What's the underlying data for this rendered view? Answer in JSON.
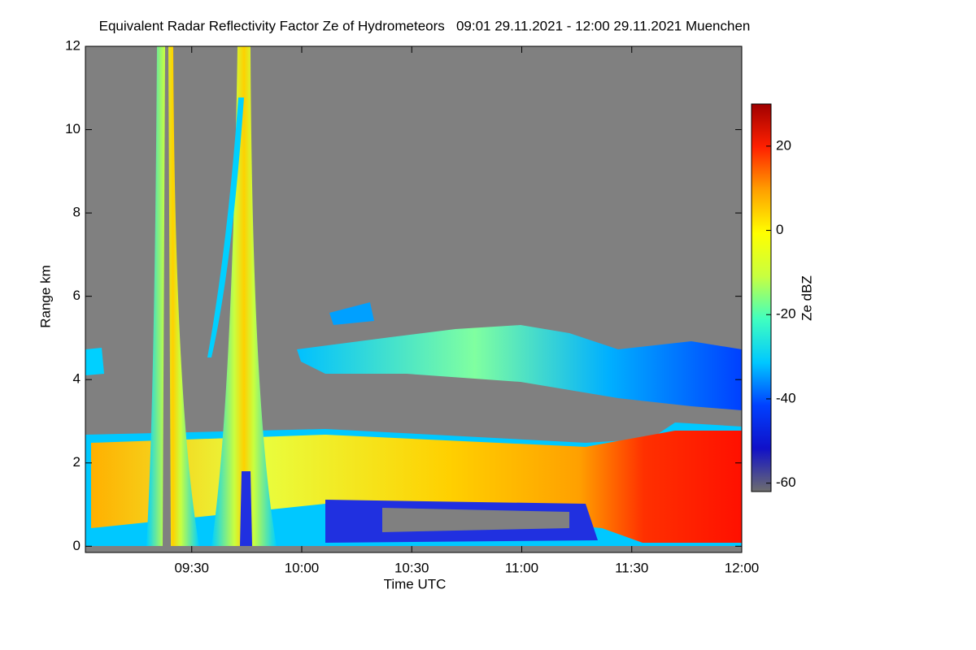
{
  "chart_data": {
    "type": "heatmap",
    "title": "Equivalent Radar Reflectivity Factor Ze of Hydrometeors   09:01 29.11.2021 - 12:00 29.11.2021 Muenchen",
    "xlabel": "Time UTC",
    "ylabel": "Range km",
    "xlim": [
      541,
      720
    ],
    "xticks": [
      {
        "value": 570,
        "label": "09:30"
      },
      {
        "value": 600,
        "label": "10:00"
      },
      {
        "value": 630,
        "label": "10:30"
      },
      {
        "value": 660,
        "label": "11:00"
      },
      {
        "value": 690,
        "label": "11:30"
      },
      {
        "value": 720,
        "label": "12:00"
      }
    ],
    "ylim": [
      -0.15,
      12
    ],
    "yticks": [
      0,
      2,
      4,
      6,
      8,
      10,
      12
    ],
    "colorbar_label": "Ze dBZ",
    "zlim": [
      -62,
      30
    ],
    "zticks": [
      -60,
      -40,
      -20,
      0,
      20
    ],
    "colormap": [
      "#6e6e6e",
      "#1010c8",
      "#0040ff",
      "#00c8ff",
      "#40ffc0",
      "#c8ff40",
      "#ffff00",
      "#ffa000",
      "#ff2000",
      "#a00000"
    ]
  }
}
